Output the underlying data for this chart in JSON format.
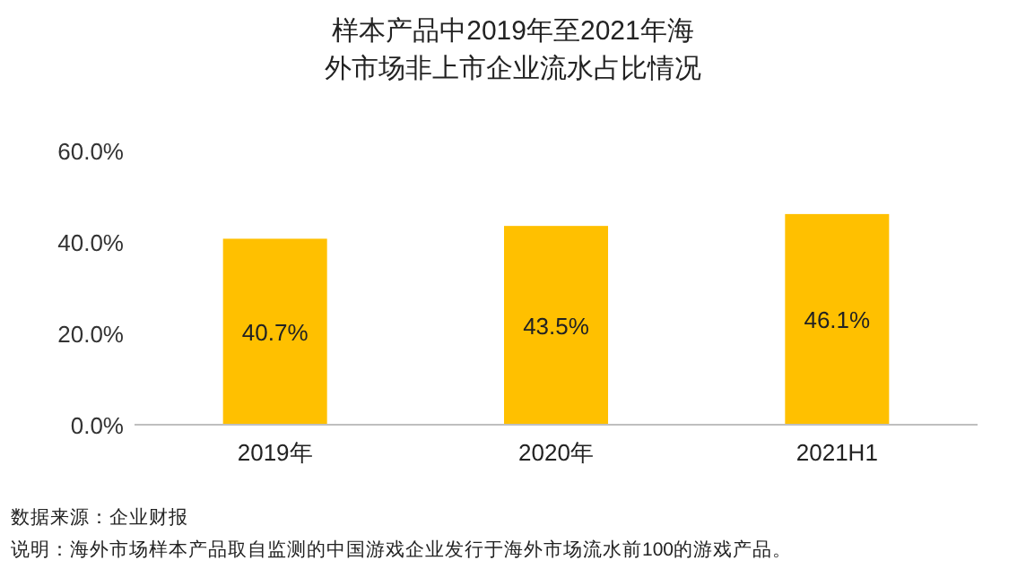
{
  "chart_data": {
    "type": "bar",
    "title": "样本产品中2019年至2021年海外市场非上市企业流水占比情况",
    "categories": [
      "2019年",
      "2020年",
      "2021H1"
    ],
    "values": [
      40.7,
      43.5,
      46.1
    ],
    "value_labels": [
      "40.7%",
      "43.5%",
      "46.1%"
    ],
    "color": "#ffc000",
    "ylim": [
      0,
      60
    ],
    "yticks": [
      {
        "value": 0,
        "label": "0.0%"
      },
      {
        "value": 20,
        "label": "20.0%"
      },
      {
        "value": 40,
        "label": "40.0%"
      },
      {
        "value": 60,
        "label": "60.0%"
      }
    ],
    "grid": false,
    "annotations": [
      "数据来源：企业财报",
      "说明：海外市场样本产品取自监测的中国游戏企业发行于海外市场流水前100的游戏产品。"
    ]
  }
}
